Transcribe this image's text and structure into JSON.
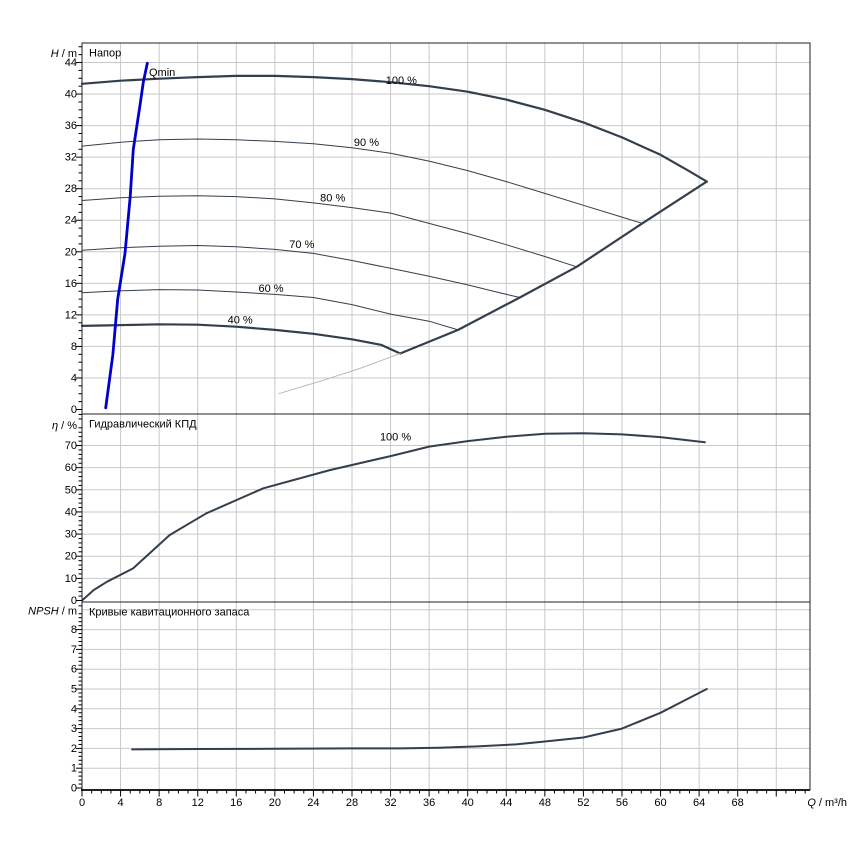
{
  "colors": {
    "dark": "#343f4d",
    "gray": "#b8b8b8",
    "blue": "#0000cc",
    "grid": "#c9c9c9",
    "frame": "#222222",
    "curve_label": "#5e6e82",
    "text": "#000000"
  },
  "chart_data": {
    "type": "line",
    "x_axis": {
      "symbol": "Q",
      "unit": "/ m³/h",
      "ticks": [
        0,
        4,
        8,
        12,
        16,
        20,
        24,
        28,
        32,
        36,
        40,
        44,
        48,
        52,
        56,
        60,
        64,
        68
      ],
      "range": [
        0,
        75.5
      ],
      "major_step": 4,
      "minor_step": 1,
      "grid": true
    },
    "charts": [
      {
        "name": "head",
        "title": "Напор",
        "y_symbol": "H",
        "y_unit": "/ m",
        "y_ticks": [
          0,
          4,
          8,
          12,
          16,
          20,
          24,
          28,
          32,
          36,
          40,
          44
        ],
        "y_range": [
          0,
          46.5
        ],
        "y_minor_step": 1,
        "y_grid_extra": [],
        "curves": [
          {
            "name": "speed-100",
            "width": 2.2,
            "color": "dark",
            "points": [
              [
                0,
                41.3
              ],
              [
                4,
                41.7
              ],
              [
                8,
                41.95
              ],
              [
                12,
                42.15
              ],
              [
                16,
                42.3
              ],
              [
                20,
                42.3
              ],
              [
                24,
                42.15
              ],
              [
                28,
                41.9
              ],
              [
                32,
                41.5
              ],
              [
                36,
                41.0
              ],
              [
                40,
                40.3
              ],
              [
                44,
                39.3
              ],
              [
                48,
                38.0
              ],
              [
                52,
                36.4
              ],
              [
                56,
                34.5
              ],
              [
                60,
                32.3
              ],
              [
                63,
                30.2
              ],
              [
                64.8,
                28.9
              ]
            ]
          },
          {
            "name": "speed-90",
            "width": 1,
            "color": "dark",
            "points": [
              [
                0,
                33.4
              ],
              [
                4,
                33.9
              ],
              [
                8,
                34.2
              ],
              [
                12,
                34.3
              ],
              [
                16,
                34.2
              ],
              [
                20,
                34.0
              ],
              [
                24,
                33.7
              ],
              [
                28,
                33.2
              ],
              [
                32,
                32.5
              ],
              [
                36,
                31.5
              ],
              [
                40,
                30.3
              ],
              [
                44,
                28.9
              ],
              [
                48,
                27.4
              ],
              [
                52,
                25.9
              ],
              [
                56,
                24.4
              ],
              [
                58.1,
                23.6
              ]
            ]
          },
          {
            "name": "speed-80",
            "width": 1,
            "color": "dark",
            "points": [
              [
                0,
                26.5
              ],
              [
                4,
                26.85
              ],
              [
                8,
                27.05
              ],
              [
                12,
                27.1
              ],
              [
                16,
                27.0
              ],
              [
                20,
                26.7
              ],
              [
                24,
                26.2
              ],
              [
                28,
                25.6
              ],
              [
                32,
                24.9
              ],
              [
                36,
                23.6
              ],
              [
                40,
                22.3
              ],
              [
                44,
                20.9
              ],
              [
                48,
                19.4
              ],
              [
                51.3,
                18.1
              ]
            ]
          },
          {
            "name": "speed-70",
            "width": 1,
            "color": "dark",
            "points": [
              [
                0,
                20.2
              ],
              [
                4,
                20.5
              ],
              [
                8,
                20.7
              ],
              [
                12,
                20.8
              ],
              [
                16,
                20.65
              ],
              [
                20,
                20.3
              ],
              [
                24,
                19.8
              ],
              [
                28,
                18.9
              ],
              [
                32,
                17.9
              ],
              [
                36,
                16.9
              ],
              [
                40,
                15.8
              ],
              [
                43,
                14.9
              ],
              [
                45.4,
                14.2
              ]
            ]
          },
          {
            "name": "speed-60",
            "width": 1,
            "color": "dark",
            "points": [
              [
                0,
                14.8
              ],
              [
                4,
                15.05
              ],
              [
                8,
                15.2
              ],
              [
                12,
                15.15
              ],
              [
                16,
                14.9
              ],
              [
                20,
                14.6
              ],
              [
                24,
                14.2
              ],
              [
                28,
                13.3
              ],
              [
                32,
                12.1
              ],
              [
                36,
                11.2
              ],
              [
                39,
                10.1
              ]
            ]
          },
          {
            "name": "speed-40",
            "width": 2.2,
            "color": "dark",
            "points": [
              [
                0,
                10.6
              ],
              [
                4,
                10.7
              ],
              [
                8,
                10.8
              ],
              [
                12,
                10.75
              ],
              [
                16,
                10.5
              ],
              [
                20,
                10.1
              ],
              [
                24,
                9.6
              ],
              [
                28,
                8.9
              ],
              [
                31,
                8.2
              ],
              [
                33,
                7.1
              ]
            ]
          },
          {
            "name": "envelope-right",
            "width": 2.2,
            "color": "dark",
            "points": [
              [
                33,
                7.1
              ],
              [
                39,
                10.1
              ],
              [
                45.4,
                14.2
              ],
              [
                51.3,
                18.1
              ],
              [
                58.1,
                23.6
              ],
              [
                64.8,
                28.9
              ]
            ]
          },
          {
            "name": "min-limit-gray",
            "width": 1,
            "color": "gray",
            "points": [
              [
                20.4,
                2.0
              ],
              [
                25,
                3.7
              ],
              [
                28.8,
                5.2
              ],
              [
                33,
                7.1
              ]
            ]
          },
          {
            "name": "qmin-line",
            "width": 2.8,
            "color": "blue",
            "points": [
              [
                2.46,
                0.2
              ],
              [
                3.2,
                7
              ],
              [
                3.7,
                14
              ],
              [
                4.46,
                19.8
              ],
              [
                5.0,
                27
              ],
              [
                5.32,
                33
              ],
              [
                6.0,
                38.5
              ],
              [
                6.36,
                41.5
              ],
              [
                6.77,
                43.9
              ]
            ]
          }
        ],
        "curve_labels": [
          {
            "text": "100 %",
            "q": 31.5,
            "v": 41.3
          },
          {
            "text": "90 %",
            "q": 28.2,
            "v": 33.4
          },
          {
            "text": "80 %",
            "q": 24.7,
            "v": 26.4
          },
          {
            "text": "70 %",
            "q": 21.5,
            "v": 20.5
          },
          {
            "text": "60 %",
            "q": 18.3,
            "v": 14.9
          },
          {
            "text": "40 %",
            "q": 15.1,
            "v": 10.9
          },
          {
            "text": "Qmin",
            "q": 6.95,
            "v": 42.3
          }
        ]
      },
      {
        "name": "efficiency",
        "title": "Гидравлический КПД",
        "y_symbol": "η",
        "y_unit": "/ %",
        "y_ticks": [
          0,
          10,
          20,
          30,
          40,
          50,
          60,
          70
        ],
        "y_range": [
          0,
          84
        ],
        "y_minor_step": 2,
        "y_grid_extra": [],
        "curves": [
          {
            "name": "eff-100",
            "width": 2,
            "color": "dark",
            "points": [
              [
                0,
                0
              ],
              [
                1.2,
                4.7
              ],
              [
                2.6,
                8.5
              ],
              [
                5.3,
                14.5
              ],
              [
                9.1,
                29.6
              ],
              [
                12.9,
                39.4
              ],
              [
                18.8,
                50.7
              ],
              [
                25.7,
                58.9
              ],
              [
                32,
                65.2
              ],
              [
                36,
                69.5
              ],
              [
                40,
                72.0
              ],
              [
                44,
                74.0
              ],
              [
                48,
                75.3
              ],
              [
                52,
                75.5
              ],
              [
                56,
                75.0
              ],
              [
                60,
                73.8
              ],
              [
                64.6,
                71.5
              ]
            ]
          }
        ],
        "curve_labels": [
          {
            "text": "100 %",
            "q": 30.9,
            "v": 72.3
          }
        ]
      },
      {
        "name": "npsh",
        "title": "Кривые кавитационного запаса",
        "y_symbol": "NPSH",
        "y_unit": "/ m",
        "y_ticks": [
          0,
          1,
          2,
          3,
          4,
          5,
          6,
          7,
          8
        ],
        "y_range": [
          0,
          9.4
        ],
        "y_minor_step": 0.2,
        "y_grid_extra": [
          9
        ],
        "curves": [
          {
            "name": "npsh-100",
            "width": 2,
            "color": "dark",
            "points": [
              [
                5.2,
                1.95
              ],
              [
                12,
                1.97
              ],
              [
                20,
                1.98
              ],
              [
                28,
                2.0
              ],
              [
                33,
                2.0
              ],
              [
                37,
                2.03
              ],
              [
                41,
                2.1
              ],
              [
                45,
                2.2
              ],
              [
                48,
                2.35
              ],
              [
                52,
                2.55
              ],
              [
                56,
                3.0
              ],
              [
                60,
                3.8
              ],
              [
                63,
                4.55
              ],
              [
                64.8,
                5.0
              ]
            ]
          }
        ],
        "curve_labels": []
      }
    ]
  }
}
